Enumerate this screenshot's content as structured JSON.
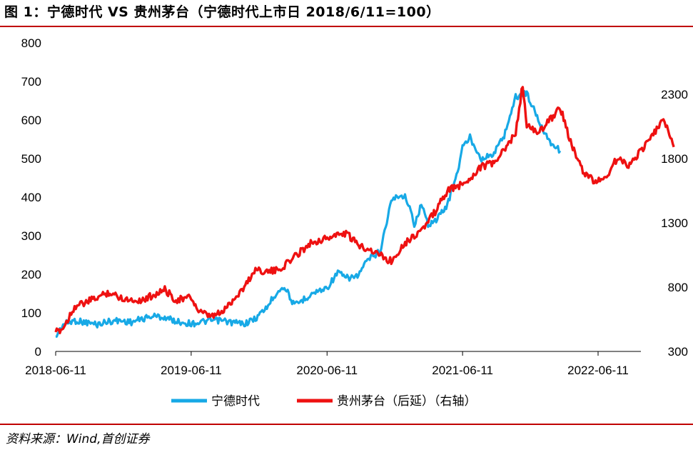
{
  "header": {
    "title": "图 1：宁德时代 VS 贵州茅台（宁德时代上市日 2018/6/11=100）"
  },
  "footer": {
    "source": "资料来源：Wind,首创证券"
  },
  "colors": {
    "rule": "#c00000",
    "catl": "#17a9e6",
    "moutai": "#ee1111"
  },
  "chart_data": {
    "type": "line",
    "x_tick_labels": [
      "2018-06-11",
      "2019-06-11",
      "2020-06-11",
      "2021-06-11",
      "2022-06-11"
    ],
    "y_left": {
      "range": [
        0,
        800
      ],
      "ticks": [
        "0",
        "100",
        "200",
        "300",
        "400",
        "500",
        "600",
        "700",
        "800"
      ]
    },
    "y_right": {
      "range": [
        300,
        2700
      ],
      "ticks": [
        "300",
        "800",
        "1300",
        "1800",
        "2300"
      ]
    },
    "series": [
      {
        "name": "宁德时代",
        "axis": "left",
        "color": "#17a9e6",
        "points": [
          [
            "2018-06-11",
            38
          ],
          [
            "2018-07-01",
            70
          ],
          [
            "2018-08-01",
            80
          ],
          [
            "2018-09-01",
            75
          ],
          [
            "2018-10-01",
            70
          ],
          [
            "2018-11-01",
            78
          ],
          [
            "2018-12-01",
            80
          ],
          [
            "2019-01-01",
            76
          ],
          [
            "2019-02-01",
            85
          ],
          [
            "2019-03-01",
            92
          ],
          [
            "2019-04-01",
            88
          ],
          [
            "2019-05-01",
            78
          ],
          [
            "2019-06-11",
            72
          ],
          [
            "2019-07-01",
            75
          ],
          [
            "2019-08-01",
            80
          ],
          [
            "2019-09-01",
            80
          ],
          [
            "2019-10-01",
            75
          ],
          [
            "2019-11-01",
            72
          ],
          [
            "2019-12-01",
            85
          ],
          [
            "2020-01-01",
            115
          ],
          [
            "2020-02-01",
            160
          ],
          [
            "2020-02-20",
            165
          ],
          [
            "2020-03-15",
            118
          ],
          [
            "2020-04-01",
            130
          ],
          [
            "2020-05-01",
            150
          ],
          [
            "2020-06-11",
            165
          ],
          [
            "2020-07-10",
            205
          ],
          [
            "2020-08-01",
            190
          ],
          [
            "2020-09-01",
            195
          ],
          [
            "2020-10-01",
            240
          ],
          [
            "2020-11-01",
            260
          ],
          [
            "2020-12-01",
            390
          ],
          [
            "2020-12-20",
            405
          ],
          [
            "2021-01-10",
            400
          ],
          [
            "2021-02-01",
            330
          ],
          [
            "2021-02-20",
            380
          ],
          [
            "2021-03-10",
            330
          ],
          [
            "2021-04-01",
            340
          ],
          [
            "2021-05-01",
            380
          ],
          [
            "2021-06-01",
            480
          ],
          [
            "2021-06-11",
            530
          ],
          [
            "2021-07-01",
            555
          ],
          [
            "2021-08-01",
            500
          ],
          [
            "2021-09-01",
            510
          ],
          [
            "2021-10-01",
            560
          ],
          [
            "2021-11-01",
            660
          ],
          [
            "2021-12-01",
            670
          ],
          [
            "2022-01-01",
            600
          ],
          [
            "2022-02-01",
            545
          ],
          [
            "2022-03-01",
            520
          ]
        ]
      },
      {
        "name": "贵州茅台（后延）（右轴）",
        "axis": "right",
        "color": "#ee1111",
        "points": [
          [
            "2018-06-11",
            450
          ],
          [
            "2018-07-01",
            480
          ],
          [
            "2018-08-01",
            650
          ],
          [
            "2018-09-01",
            680
          ],
          [
            "2018-10-01",
            720
          ],
          [
            "2018-11-01",
            760
          ],
          [
            "2018-12-01",
            720
          ],
          [
            "2019-01-01",
            700
          ],
          [
            "2019-02-01",
            700
          ],
          [
            "2019-03-01",
            740
          ],
          [
            "2019-04-01",
            780
          ],
          [
            "2019-05-01",
            700
          ],
          [
            "2019-06-11",
            720
          ],
          [
            "2019-07-01",
            610
          ],
          [
            "2019-08-01",
            570
          ],
          [
            "2019-09-01",
            600
          ],
          [
            "2019-10-01",
            700
          ],
          [
            "2019-11-01",
            800
          ],
          [
            "2019-12-01",
            940
          ],
          [
            "2020-01-01",
            920
          ],
          [
            "2020-02-01",
            930
          ],
          [
            "2020-03-01",
            1000
          ],
          [
            "2020-04-01",
            1080
          ],
          [
            "2020-05-01",
            1150
          ],
          [
            "2020-06-11",
            1180
          ],
          [
            "2020-07-01",
            1200
          ],
          [
            "2020-08-01",
            1220
          ],
          [
            "2020-09-01",
            1130
          ],
          [
            "2020-10-01",
            1100
          ],
          [
            "2020-11-01",
            1050
          ],
          [
            "2020-12-01",
            1000
          ],
          [
            "2021-01-01",
            1130
          ],
          [
            "2021-02-01",
            1200
          ],
          [
            "2021-03-01",
            1270
          ],
          [
            "2021-04-01",
            1400
          ],
          [
            "2021-05-01",
            1550
          ],
          [
            "2021-06-11",
            1600
          ],
          [
            "2021-07-01",
            1650
          ],
          [
            "2021-08-01",
            1740
          ],
          [
            "2021-09-01",
            1760
          ],
          [
            "2021-10-01",
            1860
          ],
          [
            "2021-11-01",
            2000
          ],
          [
            "2021-11-20",
            2380
          ],
          [
            "2021-12-01",
            2050
          ],
          [
            "2022-01-01",
            2000
          ],
          [
            "2022-02-01",
            2100
          ],
          [
            "2022-03-01",
            2200
          ],
          [
            "2022-04-01",
            1900
          ],
          [
            "2022-05-01",
            1700
          ],
          [
            "2022-06-01",
            1620
          ],
          [
            "2022-07-01",
            1650
          ],
          [
            "2022-08-01",
            1800
          ],
          [
            "2022-09-01",
            1750
          ],
          [
            "2022-10-01",
            1850
          ],
          [
            "2022-11-01",
            1960
          ],
          [
            "2022-12-01",
            2100
          ],
          [
            "2022-12-20",
            2000
          ],
          [
            "2023-01-01",
            1890
          ]
        ]
      }
    ],
    "legend": {
      "placement": "bottom"
    }
  }
}
